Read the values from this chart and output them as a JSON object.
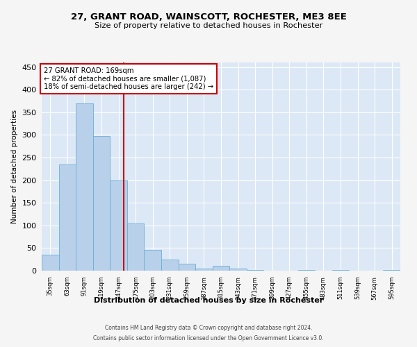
{
  "title": "27, GRANT ROAD, WAINSCOTT, ROCHESTER, ME3 8EE",
  "subtitle": "Size of property relative to detached houses in Rochester",
  "xlabel_bottom": "Distribution of detached houses by size in Rochester",
  "ylabel": "Number of detached properties",
  "bar_values": [
    35,
    235,
    370,
    298,
    199,
    105,
    46,
    24,
    15,
    5,
    10,
    5,
    1,
    0,
    0,
    1,
    0,
    1,
    0,
    0,
    1
  ],
  "categories": [
    "35sqm",
    "63sqm",
    "91sqm",
    "119sqm",
    "147sqm",
    "175sqm",
    "203sqm",
    "231sqm",
    "259sqm",
    "287sqm",
    "315sqm",
    "343sqm",
    "371sqm",
    "399sqm",
    "427sqm",
    "455sqm",
    "483sqm",
    "511sqm",
    "539sqm",
    "567sqm",
    "595sqm"
  ],
  "bin_starts": [
    35,
    63,
    91,
    119,
    147,
    175,
    203,
    231,
    259,
    287,
    315,
    343,
    371,
    399,
    427,
    455,
    483,
    511,
    539,
    567,
    595
  ],
  "bin_width": 28,
  "bar_color": "#b8d0ea",
  "bar_edge_color": "#6baed6",
  "property_size": 169,
  "property_line_color": "#cc0000",
  "annotation_text": "27 GRANT ROAD: 169sqm\n← 82% of detached houses are smaller (1,087)\n18% of semi-detached houses are larger (242) →",
  "annotation_box_color": "#ffffff",
  "annotation_box_edge_color": "#cc0000",
  "ylim": [
    0,
    460
  ],
  "yticks": [
    0,
    50,
    100,
    150,
    200,
    250,
    300,
    350,
    400,
    450
  ],
  "background_color": "#dce8f5",
  "grid_color": "#ffffff",
  "fig_facecolor": "#f5f5f5",
  "footer_line1": "Contains HM Land Registry data © Crown copyright and database right 2024.",
  "footer_line2": "Contains public sector information licensed under the Open Government Licence v3.0."
}
